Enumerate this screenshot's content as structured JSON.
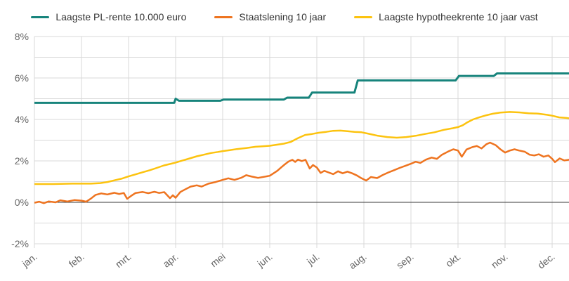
{
  "chart_data": {
    "type": "line",
    "title": "",
    "x_axis": {
      "labels": [
        "jan.",
        "feb.",
        "mrt.",
        "apr.",
        "mei",
        "jun.",
        "jul.",
        "aug.",
        "sep.",
        "okt.",
        "nov.",
        "dec."
      ],
      "months_shown": 12,
      "data_end_month": 11.37
    },
    "y_axis": {
      "min": -2,
      "max": 8,
      "grid_step": 1,
      "unit": "%",
      "ticks": [
        {
          "value": 8,
          "label": "8%"
        },
        {
          "value": 6,
          "label": "6%"
        },
        {
          "value": 4,
          "label": "4%"
        },
        {
          "value": 2,
          "label": "2%"
        },
        {
          "value": 0,
          "label": "0%"
        },
        {
          "value": -2,
          "label": "-2%"
        }
      ]
    },
    "colors": {
      "grid": "#d9d9d9",
      "zero_line": "#3a3a3a",
      "axis_text": "#666666",
      "legend_text": "#333333",
      "background": "#ffffff"
    },
    "legend_position": "top-center",
    "series": [
      {
        "id": "pl-rente",
        "name": "Laagste PL-rente 10.000 euro",
        "color": "#17847c",
        "line_width": 3,
        "points": [
          [
            0,
            4.8
          ],
          [
            2.97,
            4.8
          ],
          [
            3.0,
            5.0
          ],
          [
            3.07,
            4.9
          ],
          [
            3.95,
            4.9
          ],
          [
            4.02,
            4.96
          ],
          [
            5.3,
            4.96
          ],
          [
            5.37,
            5.05
          ],
          [
            5.83,
            5.05
          ],
          [
            5.9,
            5.3
          ],
          [
            6.8,
            5.3
          ],
          [
            6.87,
            5.88
          ],
          [
            8.95,
            5.88
          ],
          [
            9.02,
            6.1
          ],
          [
            9.76,
            6.1
          ],
          [
            9.83,
            6.22
          ],
          [
            11.37,
            6.22
          ]
        ]
      },
      {
        "id": "staatslening",
        "name": "Staatslening 10 jaar",
        "color": "#ee7420",
        "line_width": 2.5,
        "points": [
          [
            0,
            -0.02
          ],
          [
            0.1,
            0.03
          ],
          [
            0.2,
            -0.04
          ],
          [
            0.3,
            0.04
          ],
          [
            0.45,
            0.0
          ],
          [
            0.55,
            0.1
          ],
          [
            0.7,
            0.04
          ],
          [
            0.85,
            0.11
          ],
          [
            1.0,
            0.08
          ],
          [
            1.1,
            0.03
          ],
          [
            1.2,
            0.18
          ],
          [
            1.3,
            0.36
          ],
          [
            1.42,
            0.43
          ],
          [
            1.55,
            0.38
          ],
          [
            1.7,
            0.46
          ],
          [
            1.8,
            0.4
          ],
          [
            1.9,
            0.45
          ],
          [
            1.97,
            0.17
          ],
          [
            2.05,
            0.3
          ],
          [
            2.15,
            0.45
          ],
          [
            2.3,
            0.5
          ],
          [
            2.42,
            0.44
          ],
          [
            2.55,
            0.51
          ],
          [
            2.65,
            0.45
          ],
          [
            2.76,
            0.49
          ],
          [
            2.88,
            0.2
          ],
          [
            2.94,
            0.34
          ],
          [
            3.0,
            0.22
          ],
          [
            3.1,
            0.5
          ],
          [
            3.2,
            0.62
          ],
          [
            3.32,
            0.76
          ],
          [
            3.45,
            0.82
          ],
          [
            3.55,
            0.76
          ],
          [
            3.7,
            0.9
          ],
          [
            3.85,
            0.98
          ],
          [
            4.0,
            1.08
          ],
          [
            4.12,
            1.16
          ],
          [
            4.25,
            1.08
          ],
          [
            4.4,
            1.19
          ],
          [
            4.5,
            1.31
          ],
          [
            4.62,
            1.24
          ],
          [
            4.75,
            1.18
          ],
          [
            4.88,
            1.23
          ],
          [
            5.0,
            1.28
          ],
          [
            5.08,
            1.4
          ],
          [
            5.16,
            1.52
          ],
          [
            5.24,
            1.68
          ],
          [
            5.32,
            1.83
          ],
          [
            5.4,
            1.97
          ],
          [
            5.48,
            2.05
          ],
          [
            5.54,
            1.95
          ],
          [
            5.6,
            2.06
          ],
          [
            5.68,
            1.99
          ],
          [
            5.76,
            2.05
          ],
          [
            5.85,
            1.63
          ],
          [
            5.92,
            1.8
          ],
          [
            6.0,
            1.68
          ],
          [
            6.08,
            1.42
          ],
          [
            6.16,
            1.52
          ],
          [
            6.25,
            1.44
          ],
          [
            6.35,
            1.36
          ],
          [
            6.45,
            1.5
          ],
          [
            6.55,
            1.4
          ],
          [
            6.65,
            1.48
          ],
          [
            6.75,
            1.4
          ],
          [
            6.85,
            1.3
          ],
          [
            6.95,
            1.16
          ],
          [
            7.05,
            1.05
          ],
          [
            7.15,
            1.22
          ],
          [
            7.28,
            1.17
          ],
          [
            7.4,
            1.32
          ],
          [
            7.52,
            1.44
          ],
          [
            7.64,
            1.55
          ],
          [
            7.76,
            1.66
          ],
          [
            7.88,
            1.76
          ],
          [
            8.0,
            1.86
          ],
          [
            8.1,
            1.96
          ],
          [
            8.2,
            1.9
          ],
          [
            8.32,
            2.06
          ],
          [
            8.44,
            2.16
          ],
          [
            8.55,
            2.1
          ],
          [
            8.66,
            2.3
          ],
          [
            8.8,
            2.46
          ],
          [
            8.9,
            2.56
          ],
          [
            9.0,
            2.5
          ],
          [
            9.08,
            2.2
          ],
          [
            9.18,
            2.55
          ],
          [
            9.3,
            2.66
          ],
          [
            9.4,
            2.72
          ],
          [
            9.5,
            2.6
          ],
          [
            9.6,
            2.8
          ],
          [
            9.68,
            2.88
          ],
          [
            9.8,
            2.76
          ],
          [
            9.9,
            2.56
          ],
          [
            10.0,
            2.4
          ],
          [
            10.1,
            2.5
          ],
          [
            10.2,
            2.56
          ],
          [
            10.3,
            2.5
          ],
          [
            10.42,
            2.44
          ],
          [
            10.52,
            2.3
          ],
          [
            10.62,
            2.26
          ],
          [
            10.72,
            2.32
          ],
          [
            10.82,
            2.2
          ],
          [
            10.92,
            2.26
          ],
          [
            11.0,
            2.1
          ],
          [
            11.06,
            1.94
          ],
          [
            11.16,
            2.12
          ],
          [
            11.26,
            2.02
          ],
          [
            11.37,
            2.06
          ]
        ]
      },
      {
        "id": "hypotheekrente",
        "name": "Laagste hypotheekrente 10 jaar vast",
        "color": "#fcc30f",
        "line_width": 2.5,
        "points": [
          [
            0,
            0.88
          ],
          [
            0.4,
            0.88
          ],
          [
            0.8,
            0.9
          ],
          [
            1.2,
            0.9
          ],
          [
            1.4,
            0.93
          ],
          [
            1.55,
            0.98
          ],
          [
            1.7,
            1.06
          ],
          [
            1.85,
            1.14
          ],
          [
            2.0,
            1.25
          ],
          [
            2.15,
            1.35
          ],
          [
            2.3,
            1.45
          ],
          [
            2.45,
            1.55
          ],
          [
            2.6,
            1.66
          ],
          [
            2.75,
            1.78
          ],
          [
            2.9,
            1.86
          ],
          [
            3.0,
            1.92
          ],
          [
            3.15,
            2.02
          ],
          [
            3.3,
            2.12
          ],
          [
            3.45,
            2.22
          ],
          [
            3.6,
            2.3
          ],
          [
            3.75,
            2.38
          ],
          [
            3.9,
            2.43
          ],
          [
            4.0,
            2.47
          ],
          [
            4.15,
            2.52
          ],
          [
            4.3,
            2.57
          ],
          [
            4.5,
            2.62
          ],
          [
            4.7,
            2.68
          ],
          [
            4.85,
            2.7
          ],
          [
            5.0,
            2.73
          ],
          [
            5.15,
            2.78
          ],
          [
            5.3,
            2.83
          ],
          [
            5.45,
            2.92
          ],
          [
            5.6,
            3.1
          ],
          [
            5.75,
            3.25
          ],
          [
            5.9,
            3.3
          ],
          [
            6.05,
            3.36
          ],
          [
            6.2,
            3.4
          ],
          [
            6.35,
            3.45
          ],
          [
            6.5,
            3.46
          ],
          [
            6.65,
            3.43
          ],
          [
            6.8,
            3.4
          ],
          [
            6.95,
            3.38
          ],
          [
            7.1,
            3.31
          ],
          [
            7.3,
            3.21
          ],
          [
            7.5,
            3.15
          ],
          [
            7.7,
            3.12
          ],
          [
            7.9,
            3.15
          ],
          [
            8.1,
            3.21
          ],
          [
            8.3,
            3.3
          ],
          [
            8.5,
            3.38
          ],
          [
            8.7,
            3.5
          ],
          [
            8.9,
            3.58
          ],
          [
            9.0,
            3.63
          ],
          [
            9.1,
            3.72
          ],
          [
            9.2,
            3.86
          ],
          [
            9.32,
            4.0
          ],
          [
            9.45,
            4.1
          ],
          [
            9.6,
            4.2
          ],
          [
            9.75,
            4.28
          ],
          [
            9.9,
            4.33
          ],
          [
            10.1,
            4.36
          ],
          [
            10.3,
            4.34
          ],
          [
            10.5,
            4.3
          ],
          [
            10.7,
            4.28
          ],
          [
            10.9,
            4.22
          ],
          [
            11.0,
            4.18
          ],
          [
            11.15,
            4.1
          ],
          [
            11.3,
            4.07
          ],
          [
            11.37,
            4.05
          ]
        ]
      }
    ]
  }
}
